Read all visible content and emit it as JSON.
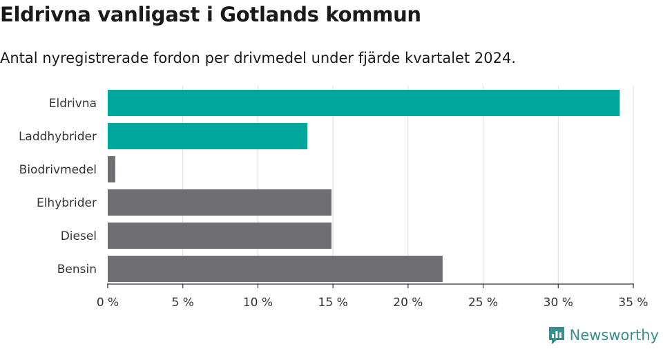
{
  "title": "Eldrivna vanligast i Gotlands kommun",
  "subtitle": "Antal nyregistrerade fordon per drivmedel under fjärde kvartalet 2024.",
  "brand": {
    "name": "Newsworthy",
    "color": "#3a8f8c"
  },
  "chart_data": {
    "type": "bar",
    "orientation": "horizontal",
    "categories": [
      "Eldrivna",
      "Laddhybrider",
      "Biodrivmedel",
      "Elhybrider",
      "Diesel",
      "Bensin"
    ],
    "values": [
      34.1,
      13.3,
      0.5,
      14.9,
      14.9,
      22.3
    ],
    "colors": [
      "#00a59b",
      "#00a59b",
      "#6e6e73",
      "#6e6e73",
      "#6e6e73",
      "#6e6e73"
    ],
    "xlim": [
      0,
      35
    ],
    "xticks": [
      0,
      5,
      10,
      15,
      20,
      25,
      30,
      35
    ],
    "tick_suffix": " %",
    "grid": true
  }
}
